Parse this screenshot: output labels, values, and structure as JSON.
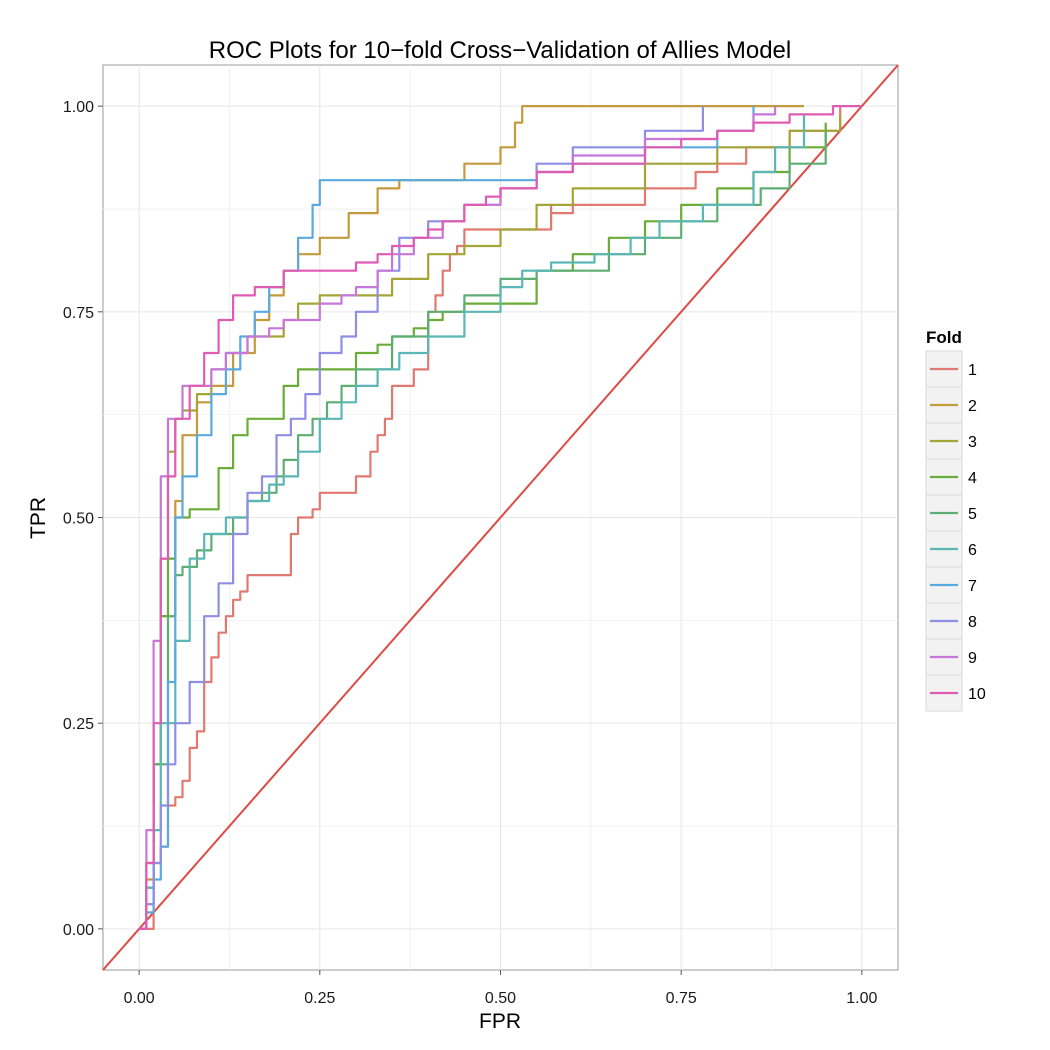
{
  "chart_data": {
    "type": "line",
    "title": "ROC Plots for 10−fold Cross−Validation of Allies Model",
    "xlabel": "FPR",
    "ylabel": "TPR",
    "xlim": [
      -0.05,
      1.05
    ],
    "ylim": [
      -0.05,
      1.05
    ],
    "x_ticks": [
      0,
      0.25,
      0.5,
      0.75,
      1
    ],
    "x_tick_labels": [
      "0.00",
      "0.25",
      "0.50",
      "0.75",
      "1.00"
    ],
    "y_ticks": [
      0,
      0.25,
      0.5,
      0.75,
      1
    ],
    "y_tick_labels": [
      "0.00",
      "0.25",
      "0.50",
      "0.75",
      "1.00"
    ],
    "grid": true,
    "legend": {
      "title": "Fold",
      "position": "right"
    },
    "reference_line": {
      "x": [
        -0.05,
        1.05
      ],
      "y": [
        -0.05,
        1.05
      ],
      "color": "#dd4a45"
    },
    "series": [
      {
        "name": "1",
        "color": "#e07a70",
        "x": [
          0,
          0.02,
          0.03,
          0.04,
          0.05,
          0.06,
          0.07,
          0.08,
          0.09,
          0.1,
          0.11,
          0.12,
          0.13,
          0.14,
          0.15,
          0.2,
          0.21,
          0.22,
          0.24,
          0.25,
          0.27,
          0.3,
          0.3,
          0.32,
          0.33,
          0.34,
          0.35,
          0.35,
          0.38,
          0.4,
          0.4,
          0.41,
          0.42,
          0.43,
          0.44,
          0.45,
          0.5,
          0.55,
          0.57,
          0.57,
          0.6,
          0.6,
          0.65,
          0.7,
          0.76,
          0.77,
          0.8,
          0.84,
          0.86,
          0.9,
          0.93,
          0.97
        ],
        "y": [
          0,
          0.08,
          0.1,
          0.15,
          0.16,
          0.18,
          0.22,
          0.24,
          0.3,
          0.33,
          0.36,
          0.38,
          0.4,
          0.41,
          0.43,
          0.43,
          0.48,
          0.5,
          0.51,
          0.53,
          0.53,
          0.53,
          0.55,
          0.58,
          0.6,
          0.62,
          0.63,
          0.66,
          0.68,
          0.7,
          0.75,
          0.77,
          0.8,
          0.82,
          0.83,
          0.85,
          0.85,
          0.85,
          0.88,
          0.87,
          0.87,
          0.88,
          0.88,
          0.9,
          0.9,
          0.92,
          0.93,
          0.95,
          0.95,
          0.97,
          0.97,
          1
        ]
      },
      {
        "name": "2",
        "color": "#c49a3c",
        "x": [
          0,
          0.01,
          0.02,
          0.03,
          0.05,
          0.06,
          0.08,
          0.1,
          0.13,
          0.16,
          0.18,
          0.2,
          0.22,
          0.25,
          0.29,
          0.33,
          0.36,
          0.4,
          0.45,
          0.5,
          0.52,
          0.53,
          0.55,
          0.68,
          0.75,
          0.85,
          0.92
        ],
        "y": [
          0,
          0.06,
          0.2,
          0.38,
          0.52,
          0.6,
          0.64,
          0.66,
          0.7,
          0.74,
          0.77,
          0.8,
          0.82,
          0.84,
          0.87,
          0.9,
          0.91,
          0.91,
          0.93,
          0.95,
          0.98,
          1,
          1,
          1,
          1,
          1,
          1
        ]
      },
      {
        "name": "3",
        "color": "#a4a437",
        "x": [
          0,
          0.01,
          0.02,
          0.03,
          0.04,
          0.05,
          0.06,
          0.08,
          0.1,
          0.12,
          0.15,
          0.2,
          0.22,
          0.25,
          0.3,
          0.35,
          0.4,
          0.45,
          0.5,
          0.55,
          0.6,
          0.7,
          0.8,
          0.9,
          0.97
        ],
        "y": [
          0,
          0.03,
          0.2,
          0.45,
          0.58,
          0.62,
          0.63,
          0.65,
          0.68,
          0.7,
          0.72,
          0.74,
          0.76,
          0.77,
          0.77,
          0.79,
          0.82,
          0.83,
          0.85,
          0.88,
          0.9,
          0.93,
          0.95,
          0.97,
          0.99
        ]
      },
      {
        "name": "4",
        "color": "#6aac37",
        "x": [
          0,
          0.01,
          0.02,
          0.03,
          0.04,
          0.05,
          0.07,
          0.09,
          0.11,
          0.13,
          0.15,
          0.18,
          0.2,
          0.22,
          0.25,
          0.3,
          0.33,
          0.35,
          0.38,
          0.4,
          0.42,
          0.45,
          0.5,
          0.55,
          0.6,
          0.65,
          0.7,
          0.75,
          0.8,
          0.85,
          0.9,
          0.95
        ],
        "y": [
          0,
          0.05,
          0.2,
          0.38,
          0.45,
          0.5,
          0.51,
          0.51,
          0.56,
          0.6,
          0.62,
          0.62,
          0.66,
          0.68,
          0.68,
          0.7,
          0.71,
          0.72,
          0.73,
          0.74,
          0.75,
          0.76,
          0.76,
          0.8,
          0.82,
          0.84,
          0.86,
          0.88,
          0.9,
          0.92,
          0.95,
          0.98
        ]
      },
      {
        "name": "5",
        "color": "#5eae74",
        "x": [
          0,
          0.01,
          0.02,
          0.04,
          0.05,
          0.06,
          0.08,
          0.1,
          0.13,
          0.15,
          0.17,
          0.19,
          0.2,
          0.22,
          0.24,
          0.26,
          0.28,
          0.3,
          0.35,
          0.4,
          0.45,
          0.5,
          0.55,
          0.6,
          0.65,
          0.7,
          0.75,
          0.8,
          0.86,
          0.9,
          0.95
        ],
        "y": [
          0,
          0.08,
          0.2,
          0.38,
          0.43,
          0.44,
          0.46,
          0.48,
          0.5,
          0.52,
          0.53,
          0.55,
          0.57,
          0.6,
          0.62,
          0.64,
          0.66,
          0.68,
          0.72,
          0.75,
          0.77,
          0.79,
          0.8,
          0.8,
          0.82,
          0.84,
          0.86,
          0.88,
          0.9,
          0.93,
          0.97
        ]
      },
      {
        "name": "6",
        "color": "#5ab7b6",
        "x": [
          0,
          0.01,
          0.02,
          0.03,
          0.05,
          0.07,
          0.09,
          0.12,
          0.15,
          0.18,
          0.2,
          0.22,
          0.25,
          0.28,
          0.3,
          0.33,
          0.36,
          0.4,
          0.45,
          0.5,
          0.53,
          0.57,
          0.63,
          0.68,
          0.72,
          0.78,
          0.85,
          0.88,
          0.92
        ],
        "y": [
          0,
          0.05,
          0.12,
          0.25,
          0.35,
          0.45,
          0.48,
          0.5,
          0.52,
          0.54,
          0.55,
          0.58,
          0.62,
          0.64,
          0.66,
          0.68,
          0.7,
          0.72,
          0.75,
          0.78,
          0.8,
          0.81,
          0.82,
          0.84,
          0.86,
          0.88,
          0.92,
          0.95,
          0.99
        ]
      },
      {
        "name": "7",
        "color": "#5aaae0",
        "x": [
          0,
          0.01,
          0.02,
          0.03,
          0.04,
          0.05,
          0.06,
          0.08,
          0.1,
          0.12,
          0.14,
          0.16,
          0.18,
          0.2,
          0.22,
          0.24,
          0.25,
          0.3,
          0.35,
          0.4,
          0.5,
          0.55,
          0.6,
          0.7,
          0.8,
          0.85
        ],
        "y": [
          0,
          0.02,
          0.06,
          0.1,
          0.3,
          0.5,
          0.55,
          0.6,
          0.65,
          0.68,
          0.72,
          0.75,
          0.78,
          0.8,
          0.84,
          0.88,
          0.91,
          0.91,
          0.91,
          0.91,
          0.91,
          0.92,
          0.93,
          0.95,
          0.97,
          1
        ]
      },
      {
        "name": "8",
        "color": "#8e8ee6",
        "x": [
          0,
          0.01,
          0.02,
          0.03,
          0.04,
          0.05,
          0.07,
          0.09,
          0.11,
          0.13,
          0.15,
          0.17,
          0.19,
          0.21,
          0.23,
          0.25,
          0.28,
          0.3,
          0.33,
          0.36,
          0.4,
          0.45,
          0.5,
          0.55,
          0.6,
          0.7,
          0.78
        ],
        "y": [
          0,
          0.03,
          0.08,
          0.15,
          0.2,
          0.25,
          0.3,
          0.38,
          0.42,
          0.48,
          0.53,
          0.55,
          0.6,
          0.62,
          0.65,
          0.7,
          0.72,
          0.75,
          0.8,
          0.84,
          0.86,
          0.88,
          0.9,
          0.93,
          0.95,
          0.97,
          1
        ]
      },
      {
        "name": "9",
        "color": "#c677d9",
        "x": [
          0,
          0.01,
          0.02,
          0.03,
          0.04,
          0.06,
          0.08,
          0.1,
          0.12,
          0.15,
          0.18,
          0.2,
          0.22,
          0.25,
          0.28,
          0.3,
          0.33,
          0.35,
          0.38,
          0.42,
          0.45,
          0.5,
          0.55,
          0.6,
          0.7,
          0.8,
          0.85,
          0.88
        ],
        "y": [
          0,
          0.12,
          0.35,
          0.55,
          0.62,
          0.66,
          0.66,
          0.68,
          0.7,
          0.72,
          0.73,
          0.74,
          0.74,
          0.76,
          0.77,
          0.78,
          0.8,
          0.82,
          0.84,
          0.86,
          0.88,
          0.9,
          0.92,
          0.94,
          0.96,
          0.97,
          0.99,
          1
        ]
      },
      {
        "name": "10",
        "color": "#e05cb3",
        "x": [
          0,
          0.01,
          0.02,
          0.03,
          0.04,
          0.05,
          0.07,
          0.09,
          0.11,
          0.13,
          0.16,
          0.2,
          0.23,
          0.27,
          0.3,
          0.33,
          0.35,
          0.38,
          0.4,
          0.42,
          0.45,
          0.48,
          0.5,
          0.55,
          0.6,
          0.7,
          0.75,
          0.8,
          0.85,
          0.9,
          0.96,
          1.0
        ],
        "y": [
          0,
          0.08,
          0.25,
          0.45,
          0.55,
          0.62,
          0.66,
          0.7,
          0.74,
          0.77,
          0.78,
          0.8,
          0.8,
          0.8,
          0.81,
          0.82,
          0.83,
          0.84,
          0.85,
          0.86,
          0.88,
          0.89,
          0.9,
          0.92,
          0.93,
          0.95,
          0.96,
          0.97,
          0.98,
          0.99,
          1,
          1
        ]
      }
    ]
  }
}
